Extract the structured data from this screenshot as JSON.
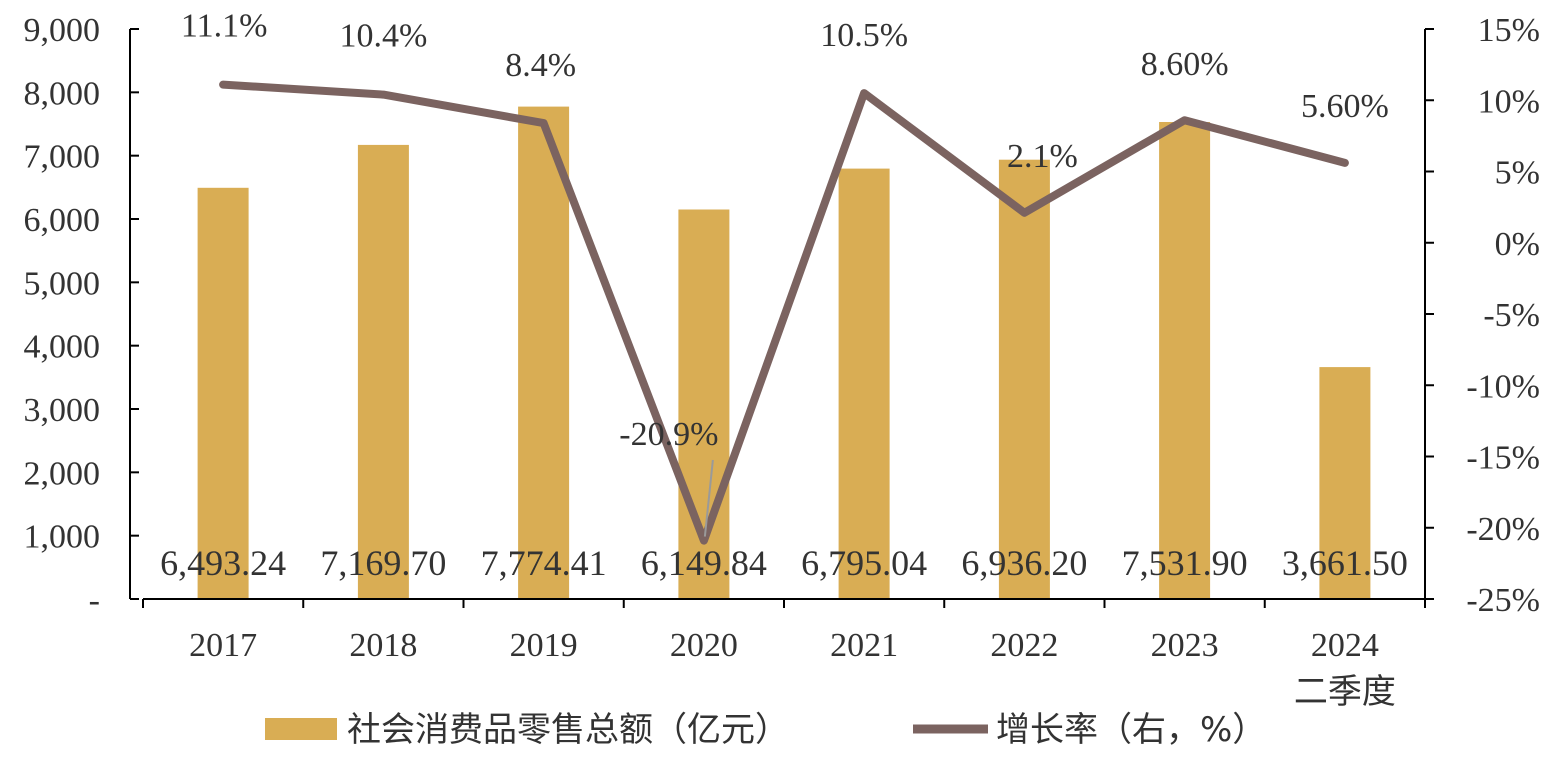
{
  "chart_data": {
    "type": "bar",
    "categories": [
      "2017",
      "2018",
      "2019",
      "2020",
      "2021",
      "2022",
      "2023",
      "2024\n二季度"
    ],
    "category_lines": [
      [
        "2017"
      ],
      [
        "2018"
      ],
      [
        "2019"
      ],
      [
        "2020"
      ],
      [
        "2021"
      ],
      [
        "2022"
      ],
      [
        "2023"
      ],
      [
        "2024",
        "二季度"
      ]
    ],
    "series": [
      {
        "name": "社会消费品零售总额（亿元）",
        "type": "bar",
        "axis": "left",
        "color": "#D9AD54",
        "values": [
          6493.24,
          7169.7,
          7774.41,
          6149.84,
          6795.04,
          6936.2,
          7531.9,
          3661.5
        ],
        "labels": [
          "6,493.24",
          "7,169.70",
          "7,774.41",
          "6,149.84",
          "6,795.04",
          "6,936.20",
          "7,531.90",
          "3,661.50"
        ]
      },
      {
        "name": "增长率（右，%）",
        "type": "line",
        "axis": "right",
        "color": "#7B6360",
        "values": [
          11.1,
          10.4,
          8.4,
          -20.9,
          10.5,
          2.1,
          8.6,
          5.6
        ],
        "labels": [
          "11.1%",
          "10.4%",
          "8.4%",
          "-20.9%",
          "10.5%",
          "2.1%",
          "8.60%",
          "5.60%"
        ]
      }
    ],
    "y_left": {
      "ylim": [
        0,
        9000
      ],
      "ticks": [
        0,
        1000,
        2000,
        3000,
        4000,
        5000,
        6000,
        7000,
        8000,
        9000
      ],
      "tick_labels": [
        "-",
        "1,000",
        "2,000",
        "3,000",
        "4,000",
        "5,000",
        "6,000",
        "7,000",
        "8,000",
        "9,000"
      ]
    },
    "y_right": {
      "ylim": [
        -25,
        15
      ],
      "ticks": [
        -25,
        -20,
        -15,
        -10,
        -5,
        0,
        5,
        10,
        15
      ],
      "tick_labels": [
        "-25%",
        "-20%",
        "-15%",
        "-10%",
        "-5%",
        "0%",
        "5%",
        "10%",
        "15%"
      ]
    },
    "axis_color": "#000000",
    "grid": false,
    "legend_position": "bottom",
    "title": "",
    "xlabel": "",
    "ylabel": ""
  }
}
